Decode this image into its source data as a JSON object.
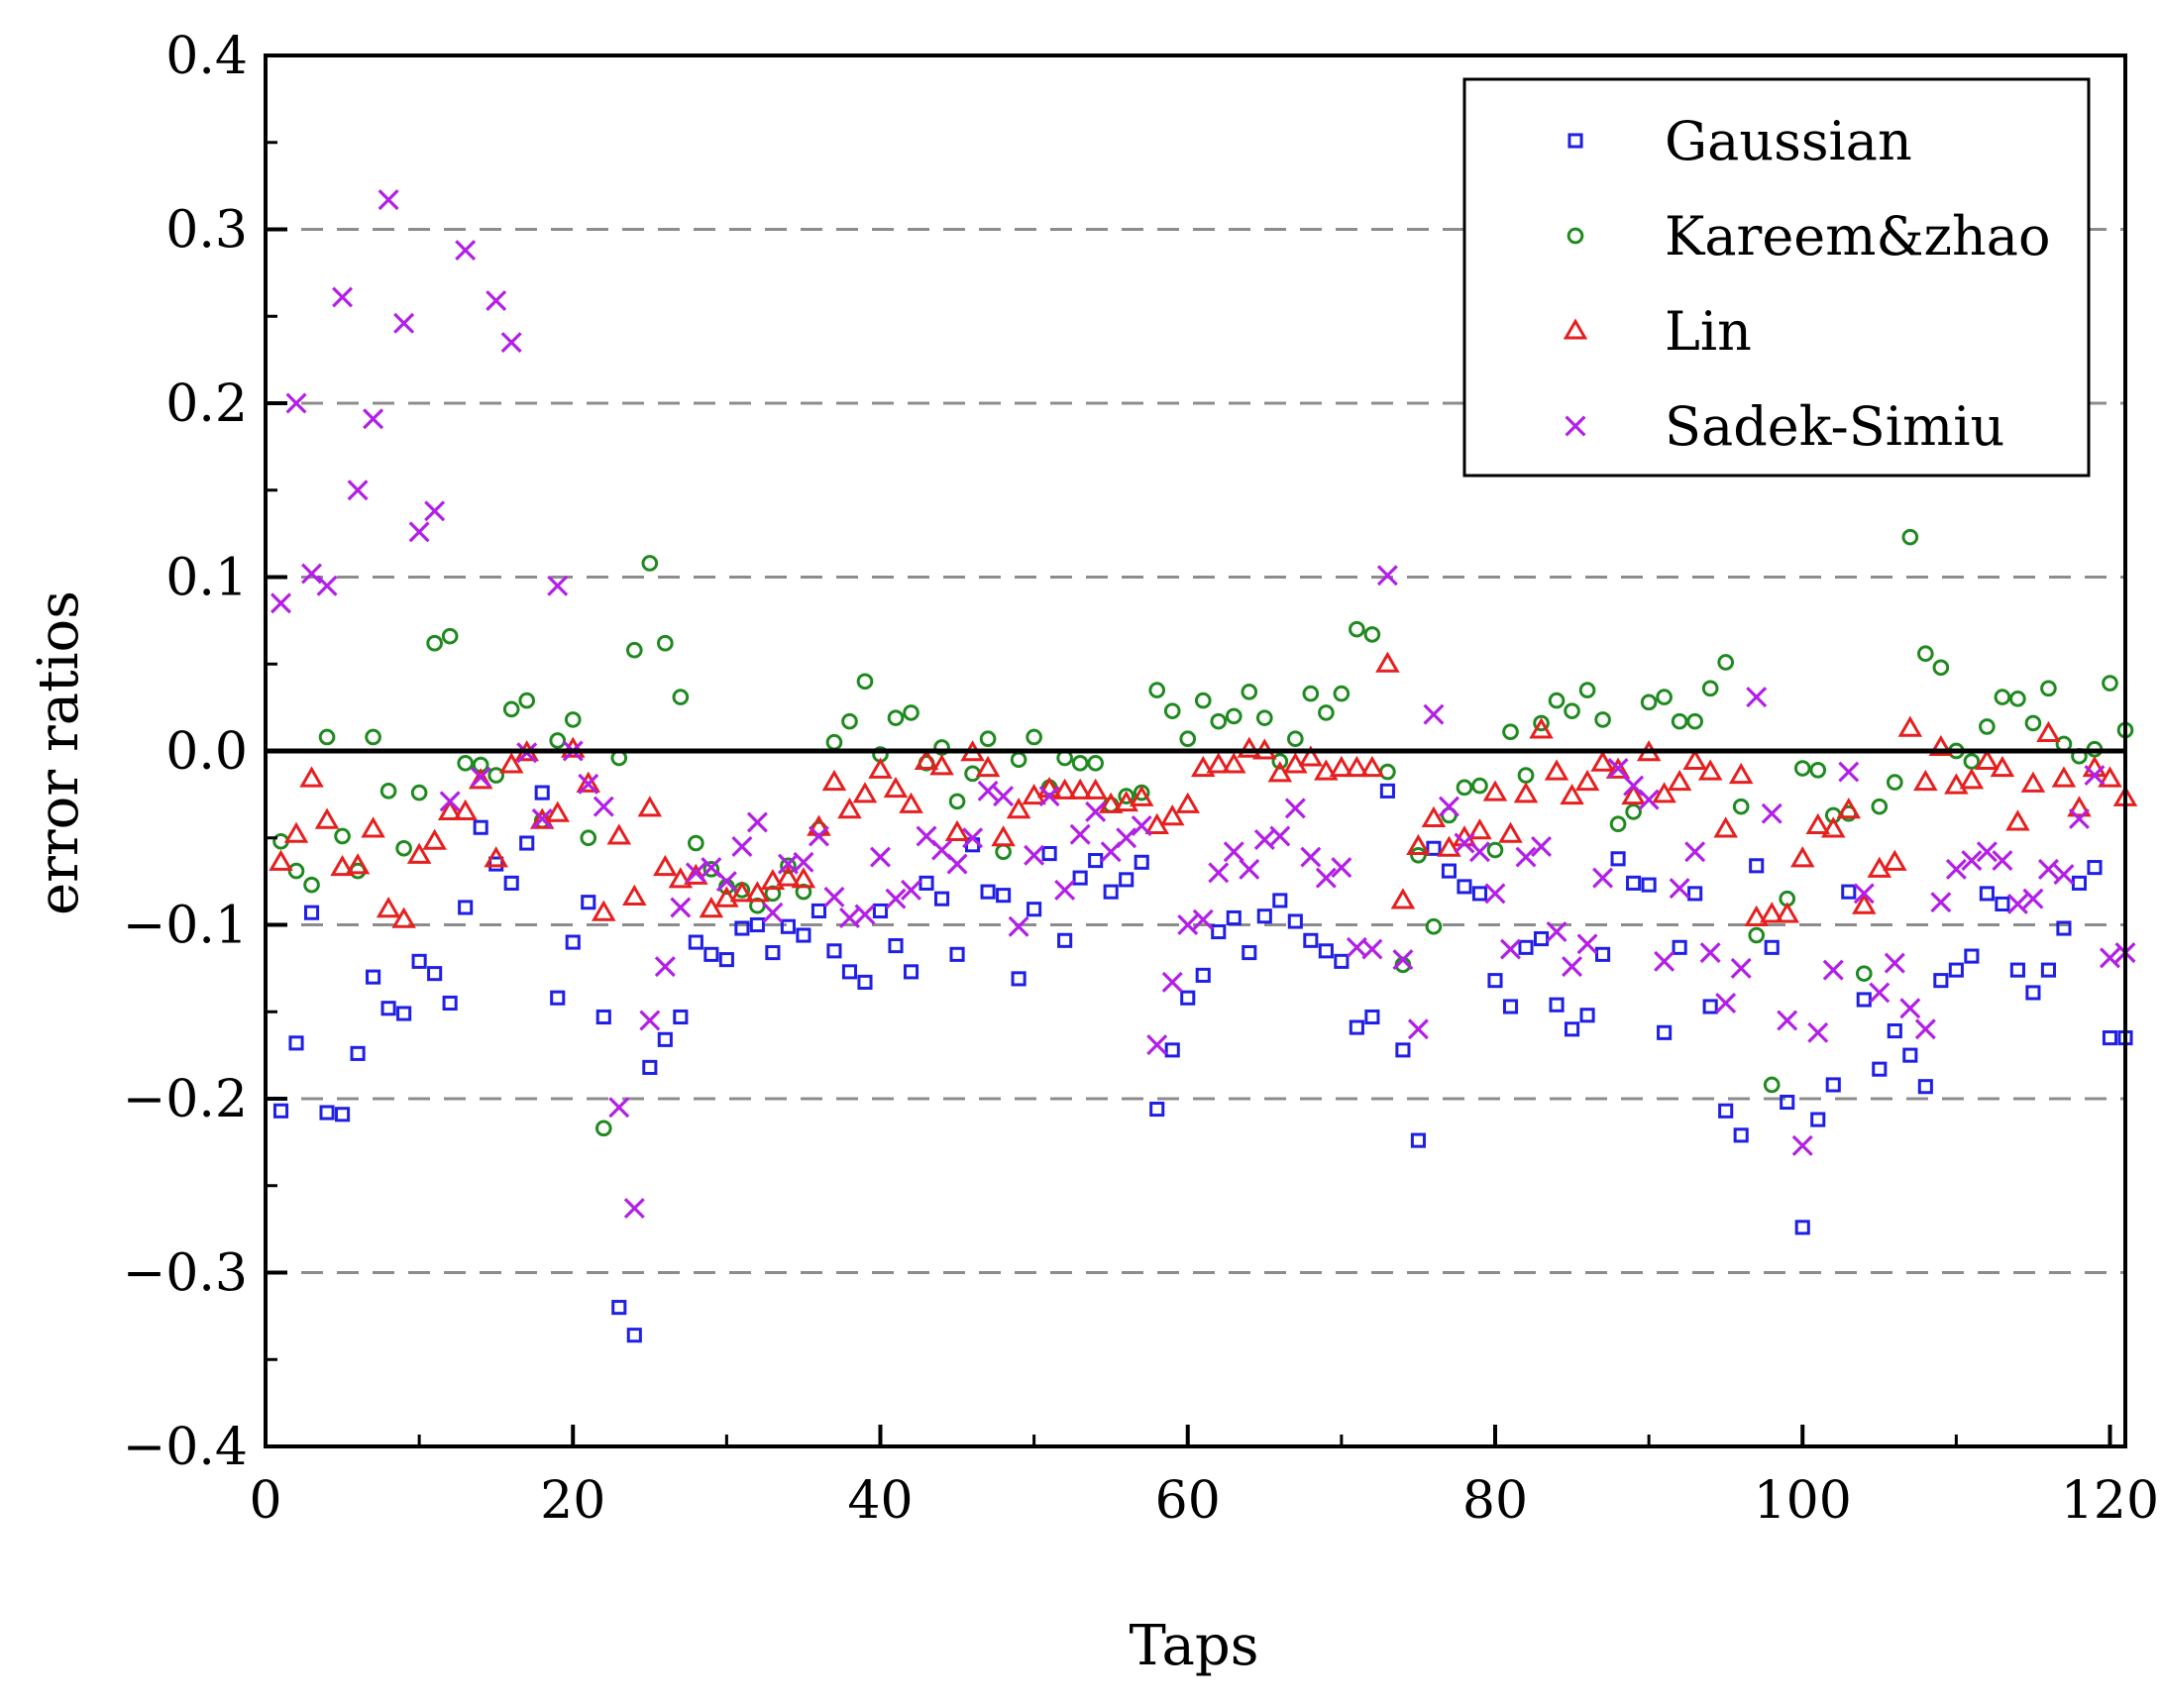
{
  "chart_data": {
    "type": "scatter",
    "title": "",
    "xlabel": "Taps",
    "ylabel": "error ratios",
    "xlim": [
      0,
      121
    ],
    "ylim": [
      -0.4,
      0.4
    ],
    "xticks": [
      0,
      20,
      40,
      60,
      80,
      100,
      120
    ],
    "xtick_labels": [
      "0",
      "20",
      "40",
      "60",
      "80",
      "100",
      "120"
    ],
    "yticks": [
      -0.4,
      -0.3,
      -0.2,
      -0.1,
      0.0,
      0.1,
      0.2,
      0.3,
      0.4
    ],
    "ytick_labels": [
      "−0.4",
      "−0.3",
      "−0.2",
      "−0.1",
      "0.0",
      "0.1",
      "0.2",
      "0.3",
      "0.4"
    ],
    "dashed_gridlines": [
      -0.3,
      -0.2,
      -0.1,
      0.1,
      0.2,
      0.3
    ],
    "reference_line": 0.0,
    "legend_position": "top-right",
    "series": [
      {
        "name": "Gaussian",
        "marker": "square",
        "color": "#1f1fe6",
        "x": [
          1,
          2,
          3,
          4,
          5,
          6,
          7,
          8,
          9,
          10,
          11,
          12,
          13,
          14,
          15,
          16,
          17,
          18,
          19,
          20,
          21,
          22,
          23,
          24,
          25,
          26,
          27,
          28,
          29,
          30,
          31,
          32,
          33,
          34,
          35,
          36,
          37,
          38,
          39,
          40,
          41,
          42,
          43,
          44,
          45,
          46,
          47,
          48,
          49,
          50,
          51,
          52,
          53,
          54,
          55,
          56,
          57,
          58,
          59,
          60,
          61,
          62,
          63,
          64,
          65,
          66,
          67,
          68,
          69,
          70,
          71,
          72,
          73,
          74,
          75,
          76,
          77,
          78,
          79,
          80,
          81,
          82,
          83,
          84,
          85,
          86,
          87,
          88,
          89,
          90,
          91,
          92,
          93,
          94,
          95,
          96,
          97,
          98,
          99,
          100,
          101,
          102,
          103,
          104,
          105,
          106,
          107,
          108,
          109,
          110,
          111,
          112,
          113,
          114,
          115,
          116,
          117,
          118,
          119,
          120,
          121
        ],
        "y": [
          -0.207,
          -0.168,
          -0.093,
          -0.208,
          -0.209,
          -0.174,
          -0.13,
          -0.148,
          -0.151,
          -0.121,
          -0.128,
          -0.145,
          -0.09,
          -0.044,
          -0.065,
          -0.076,
          -0.053,
          -0.024,
          -0.142,
          -0.11,
          -0.087,
          -0.153,
          -0.32,
          -0.336,
          -0.182,
          -0.166,
          -0.153,
          -0.11,
          -0.117,
          -0.12,
          -0.102,
          -0.1,
          -0.116,
          -0.101,
          -0.106,
          -0.092,
          -0.115,
          -0.127,
          -0.133,
          -0.092,
          -0.112,
          -0.127,
          -0.076,
          -0.085,
          -0.117,
          -0.054,
          -0.081,
          -0.083,
          -0.131,
          -0.091,
          -0.059,
          -0.109,
          -0.073,
          -0.063,
          -0.081,
          -0.074,
          -0.064,
          -0.206,
          -0.172,
          -0.142,
          -0.129,
          -0.104,
          -0.096,
          -0.116,
          -0.095,
          -0.086,
          -0.098,
          -0.109,
          -0.115,
          -0.121,
          -0.159,
          -0.153,
          -0.023,
          -0.172,
          -0.224,
          -0.056,
          -0.069,
          -0.078,
          -0.082,
          -0.132,
          -0.147,
          -0.113,
          -0.108,
          -0.146,
          -0.16,
          -0.152,
          -0.117,
          -0.062,
          -0.076,
          -0.077,
          -0.162,
          -0.113,
          -0.082,
          -0.147,
          -0.207,
          -0.221,
          -0.066,
          -0.113,
          -0.202,
          -0.274,
          -0.212,
          -0.192,
          -0.081,
          -0.143,
          -0.183,
          -0.161,
          -0.175,
          -0.193,
          -0.132,
          -0.126,
          -0.118,
          -0.082,
          -0.088,
          -0.126,
          -0.139,
          -0.126,
          -0.102,
          -0.076,
          -0.067,
          -0.165,
          -0.165
        ]
      },
      {
        "name": "Kareem&zhao",
        "marker": "circle",
        "color": "#1f8a1f",
        "x": [
          1,
          2,
          3,
          4,
          5,
          6,
          7,
          8,
          9,
          10,
          11,
          12,
          13,
          14,
          15,
          16,
          17,
          18,
          19,
          20,
          21,
          22,
          23,
          24,
          25,
          26,
          27,
          28,
          29,
          30,
          31,
          32,
          33,
          34,
          35,
          36,
          37,
          38,
          39,
          40,
          41,
          42,
          43,
          44,
          45,
          46,
          47,
          48,
          49,
          50,
          51,
          52,
          53,
          54,
          55,
          56,
          57,
          58,
          59,
          60,
          61,
          62,
          63,
          64,
          65,
          66,
          67,
          68,
          69,
          70,
          71,
          72,
          73,
          74,
          75,
          76,
          77,
          78,
          79,
          80,
          81,
          82,
          83,
          84,
          85,
          86,
          87,
          88,
          89,
          90,
          91,
          92,
          93,
          94,
          95,
          96,
          97,
          98,
          99,
          100,
          101,
          102,
          103,
          104,
          105,
          106,
          107,
          108,
          109,
          110,
          111,
          112,
          113,
          114,
          115,
          116,
          117,
          118,
          119,
          120,
          121
        ],
        "y": [
          -0.052,
          -0.069,
          -0.077,
          0.008,
          -0.049,
          -0.069,
          0.008,
          -0.023,
          -0.056,
          -0.024,
          0.062,
          0.066,
          -0.007,
          -0.008,
          -0.014,
          0.024,
          0.029,
          -0.04,
          0.006,
          0.018,
          -0.05,
          -0.217,
          -0.004,
          0.058,
          0.108,
          0.062,
          0.031,
          -0.053,
          -0.068,
          -0.078,
          -0.08,
          -0.089,
          -0.082,
          -0.066,
          -0.081,
          -0.045,
          0.005,
          0.017,
          0.04,
          -0.002,
          0.019,
          0.022,
          -0.007,
          0.002,
          -0.029,
          -0.013,
          0.007,
          -0.058,
          -0.005,
          0.008,
          -0.021,
          -0.004,
          -0.007,
          -0.007,
          -0.031,
          -0.026,
          -0.024,
          0.035,
          0.023,
          0.007,
          0.029,
          0.017,
          0.02,
          0.034,
          0.019,
          -0.006,
          0.007,
          0.033,
          0.022,
          0.033,
          0.07,
          0.067,
          -0.012,
          -0.123,
          -0.06,
          -0.101,
          -0.037,
          -0.021,
          -0.02,
          -0.057,
          0.011,
          -0.014,
          0.016,
          0.029,
          0.023,
          0.035,
          0.018,
          -0.042,
          -0.035,
          0.028,
          0.031,
          0.017,
          0.017,
          0.036,
          0.051,
          -0.032,
          -0.106,
          -0.192,
          -0.085,
          -0.01,
          -0.011,
          -0.037,
          -0.036,
          -0.128,
          -0.032,
          -0.018,
          0.123,
          0.056,
          0.048,
          0.0,
          -0.006,
          0.014,
          0.031,
          0.03,
          0.016,
          0.036,
          0.004,
          -0.003,
          0.001,
          0.039,
          0.012
        ]
      },
      {
        "name": "Lin",
        "marker": "triangle",
        "color": "#e61f1f",
        "x": [
          1,
          2,
          3,
          4,
          5,
          6,
          7,
          8,
          9,
          10,
          11,
          12,
          13,
          14,
          15,
          16,
          17,
          18,
          19,
          20,
          21,
          22,
          23,
          24,
          25,
          26,
          27,
          28,
          29,
          30,
          31,
          32,
          33,
          34,
          35,
          36,
          37,
          38,
          39,
          40,
          41,
          42,
          43,
          44,
          45,
          46,
          47,
          48,
          49,
          50,
          51,
          52,
          53,
          54,
          55,
          56,
          57,
          58,
          59,
          60,
          61,
          62,
          63,
          64,
          65,
          66,
          67,
          68,
          69,
          70,
          71,
          72,
          73,
          74,
          75,
          76,
          77,
          78,
          79,
          80,
          81,
          82,
          83,
          84,
          85,
          86,
          87,
          88,
          89,
          90,
          91,
          92,
          93,
          94,
          95,
          96,
          97,
          98,
          99,
          100,
          101,
          102,
          103,
          104,
          105,
          106,
          107,
          108,
          109,
          110,
          111,
          112,
          113,
          114,
          115,
          116,
          117,
          118,
          119,
          120,
          121
        ],
        "y": [
          -0.064,
          -0.048,
          -0.016,
          -0.04,
          -0.067,
          -0.066,
          -0.045,
          -0.091,
          -0.097,
          -0.06,
          -0.052,
          -0.035,
          -0.035,
          -0.017,
          -0.062,
          -0.008,
          -0.001,
          -0.04,
          -0.036,
          0.001,
          -0.019,
          -0.093,
          -0.049,
          -0.084,
          -0.033,
          -0.067,
          -0.074,
          -0.072,
          -0.091,
          -0.085,
          -0.082,
          -0.082,
          -0.075,
          -0.073,
          -0.074,
          -0.044,
          -0.018,
          -0.034,
          -0.025,
          -0.011,
          -0.022,
          -0.031,
          -0.006,
          -0.009,
          -0.047,
          -0.001,
          -0.01,
          -0.05,
          -0.034,
          -0.026,
          -0.022,
          -0.023,
          -0.023,
          -0.023,
          -0.031,
          -0.03,
          -0.027,
          -0.043,
          -0.038,
          -0.031,
          -0.01,
          -0.008,
          -0.008,
          0.001,
          0.0,
          -0.013,
          -0.008,
          -0.004,
          -0.012,
          -0.01,
          -0.01,
          -0.01,
          0.05,
          -0.086,
          -0.055,
          -0.039,
          -0.056,
          -0.05,
          -0.046,
          -0.024,
          -0.048,
          -0.025,
          0.012,
          -0.012,
          -0.026,
          -0.018,
          -0.007,
          -0.011,
          -0.026,
          -0.001,
          -0.025,
          -0.018,
          -0.006,
          -0.012,
          -0.045,
          -0.014,
          -0.096,
          -0.094,
          -0.094,
          -0.062,
          -0.043,
          -0.045,
          -0.034,
          -0.089,
          -0.068,
          -0.064,
          0.013,
          -0.018,
          0.002,
          -0.02,
          -0.017,
          -0.006,
          -0.01,
          -0.041,
          -0.019,
          0.01,
          -0.016,
          -0.033,
          -0.01,
          -0.016,
          -0.027
        ]
      },
      {
        "name": "Sadek-Simiu",
        "marker": "cross",
        "color": "#b31fe6",
        "x": [
          1,
          2,
          3,
          4,
          5,
          6,
          7,
          8,
          9,
          10,
          11,
          12,
          13,
          14,
          15,
          16,
          17,
          18,
          19,
          20,
          21,
          22,
          23,
          24,
          25,
          26,
          27,
          28,
          29,
          30,
          31,
          32,
          33,
          34,
          35,
          36,
          37,
          38,
          39,
          40,
          41,
          42,
          43,
          44,
          45,
          46,
          47,
          48,
          49,
          50,
          51,
          52,
          53,
          54,
          55,
          56,
          57,
          58,
          59,
          60,
          61,
          62,
          63,
          64,
          65,
          66,
          67,
          68,
          69,
          70,
          71,
          72,
          73,
          74,
          75,
          76,
          77,
          78,
          79,
          80,
          81,
          82,
          83,
          84,
          85,
          86,
          87,
          88,
          89,
          90,
          91,
          92,
          93,
          94,
          95,
          96,
          97,
          98,
          99,
          100,
          101,
          102,
          103,
          104,
          105,
          106,
          107,
          108,
          109,
          110,
          111,
          112,
          113,
          114,
          115,
          116,
          117,
          118,
          119,
          120,
          121
        ],
        "y": [
          0.085,
          0.2,
          0.102,
          0.095,
          0.261,
          0.15,
          0.191,
          0.317,
          0.246,
          0.126,
          0.138,
          -0.029,
          0.288,
          -0.015,
          0.259,
          0.235,
          -0.001,
          -0.039,
          0.095,
          0.0,
          -0.019,
          -0.032,
          -0.205,
          -0.263,
          -0.155,
          -0.124,
          -0.09,
          -0.07,
          -0.067,
          -0.075,
          -0.055,
          -0.041,
          -0.093,
          -0.065,
          -0.064,
          -0.049,
          -0.084,
          -0.096,
          -0.094,
          -0.061,
          -0.085,
          -0.08,
          -0.049,
          -0.057,
          -0.065,
          -0.05,
          -0.023,
          -0.026,
          -0.101,
          -0.06,
          -0.026,
          -0.08,
          -0.048,
          -0.035,
          -0.058,
          -0.05,
          -0.043,
          -0.169,
          -0.133,
          -0.1,
          -0.097,
          -0.07,
          -0.058,
          -0.068,
          -0.051,
          -0.049,
          -0.033,
          -0.061,
          -0.073,
          -0.067,
          -0.113,
          -0.114,
          0.101,
          -0.12,
          -0.16,
          0.021,
          -0.032,
          -0.053,
          -0.058,
          -0.082,
          -0.114,
          -0.061,
          -0.055,
          -0.104,
          -0.124,
          -0.111,
          -0.073,
          -0.01,
          -0.02,
          -0.028,
          -0.121,
          -0.079,
          -0.058,
          -0.116,
          -0.145,
          -0.125,
          0.031,
          -0.036,
          -0.155,
          -0.227,
          -0.162,
          -0.126,
          -0.012,
          -0.082,
          -0.139,
          -0.122,
          -0.148,
          -0.16,
          -0.087,
          -0.068,
          -0.063,
          -0.058,
          -0.063,
          -0.088,
          -0.085,
          -0.068,
          -0.071,
          -0.039,
          -0.014,
          -0.119,
          -0.116
        ]
      }
    ]
  }
}
